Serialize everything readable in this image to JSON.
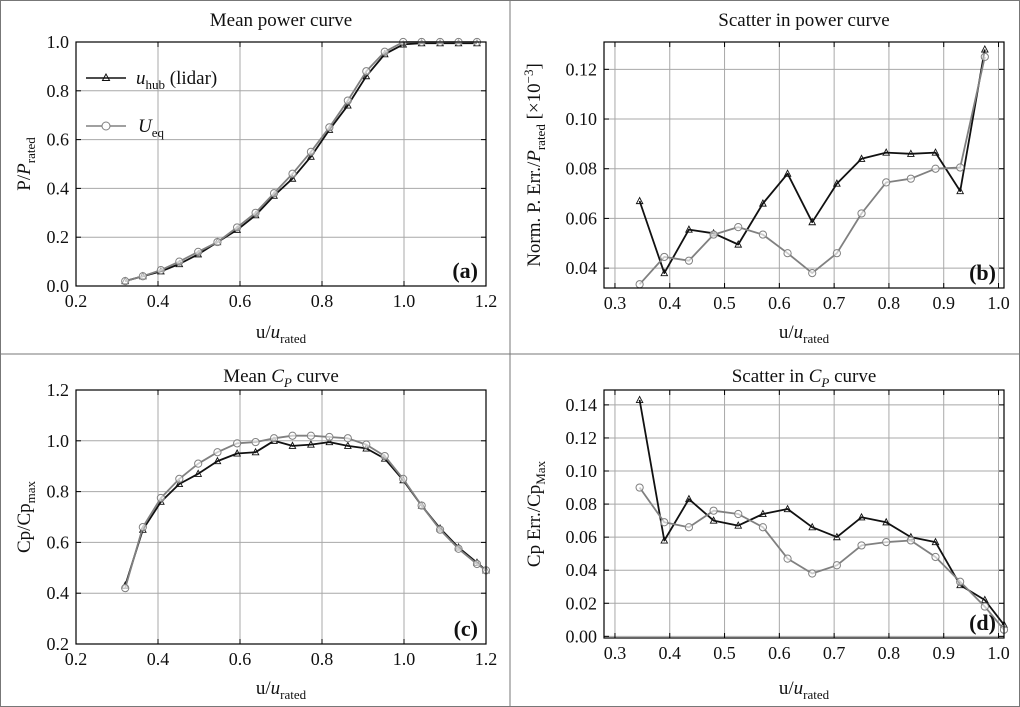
{
  "colors": {
    "hub": "#111111",
    "eq": "#808080",
    "grid": "#a8a8a8",
    "frame": "#000000",
    "panel_border": "#777777"
  },
  "legend": {
    "hub": {
      "sym": "u",
      "sub": "hub",
      "suffix": " (lidar)"
    },
    "eq": {
      "sym": "U",
      "sub": "eq",
      "suffix": ""
    }
  },
  "chart_data": [
    {
      "id": "a",
      "type": "line",
      "title": [
        {
          "t": "Mean power curve"
        }
      ],
      "xlabel": [
        {
          "t": "u/"
        },
        {
          "t": "u",
          "i": true
        },
        {
          "t": "rated",
          "sub": true
        }
      ],
      "ylabel": [
        {
          "t": "P/"
        },
        {
          "t": "P",
          "i": true
        },
        {
          "t": "rated",
          "sub": true
        }
      ],
      "panel_label": "(a)",
      "xlim": [
        0.2,
        1.2
      ],
      "ylim": [
        0.0,
        1.0
      ],
      "xticks": [
        0.2,
        0.4,
        0.6,
        0.8,
        1.0,
        1.2
      ],
      "xtick_labels": [
        "0.2",
        "0.4",
        "0.6",
        "0.8",
        "1.0",
        "1.2"
      ],
      "yticks": [
        0.0,
        0.2,
        0.4,
        0.6,
        0.8,
        1.0
      ],
      "ytick_labels": [
        "0.0",
        "0.2",
        "0.4",
        "0.6",
        "0.8",
        "1.0"
      ],
      "grid": true,
      "legend": "upper-left",
      "series": [
        {
          "key": "hub",
          "marker": "triangle",
          "x": [
            0.32,
            0.363,
            0.407,
            0.452,
            0.498,
            0.545,
            0.593,
            0.638,
            0.683,
            0.728,
            0.773,
            0.818,
            0.863,
            0.908,
            0.953,
            0.998,
            1.043,
            1.088,
            1.133,
            1.178
          ],
          "y": [
            0.02,
            0.04,
            0.06,
            0.09,
            0.13,
            0.18,
            0.23,
            0.29,
            0.37,
            0.44,
            0.53,
            0.64,
            0.74,
            0.86,
            0.95,
            0.99,
            0.995,
            0.995,
            0.995,
            0.995
          ]
        },
        {
          "key": "eq",
          "marker": "circle",
          "x": [
            0.32,
            0.363,
            0.407,
            0.452,
            0.498,
            0.545,
            0.593,
            0.638,
            0.683,
            0.728,
            0.773,
            0.818,
            0.863,
            0.908,
            0.953,
            0.998,
            1.043,
            1.088,
            1.133,
            1.178
          ],
          "y": [
            0.02,
            0.04,
            0.065,
            0.1,
            0.14,
            0.18,
            0.24,
            0.3,
            0.38,
            0.46,
            0.55,
            0.65,
            0.76,
            0.88,
            0.96,
            1.0,
            1.0,
            1.0,
            1.0,
            1.0
          ]
        }
      ]
    },
    {
      "id": "b",
      "type": "line",
      "title": [
        {
          "t": "Scatter in power curve"
        }
      ],
      "xlabel": [
        {
          "t": "u/"
        },
        {
          "t": "u",
          "i": true
        },
        {
          "t": "rated",
          "sub": true
        }
      ],
      "ylabel": [
        {
          "t": "Norm. P. Err./"
        },
        {
          "t": "P",
          "i": true
        },
        {
          "t": "rated",
          "sub": true
        },
        {
          "t": " [×10"
        },
        {
          "t": "−3",
          "sup": true
        },
        {
          "t": "]"
        }
      ],
      "panel_label": "(b)",
      "xlim": [
        0.28,
        1.01
      ],
      "ylim": [
        0.032,
        0.131
      ],
      "xticks": [
        0.3,
        0.4,
        0.5,
        0.6,
        0.7,
        0.8,
        0.9,
        1.0
      ],
      "xtick_labels": [
        "0.3",
        "0.4",
        "0.5",
        "0.6",
        "0.7",
        "0.8",
        "0.9",
        "1.0"
      ],
      "yticks": [
        0.04,
        0.06,
        0.08,
        0.1,
        0.12
      ],
      "ytick_labels": [
        "0.04",
        "0.06",
        "0.08",
        "0.10",
        "0.12"
      ],
      "grid": true,
      "legend": "none",
      "series": [
        {
          "key": "hub",
          "marker": "triangle",
          "x": [
            0.345,
            0.39,
            0.435,
            0.48,
            0.525,
            0.57,
            0.615,
            0.66,
            0.705,
            0.75,
            0.795,
            0.84,
            0.885,
            0.93,
            0.975
          ],
          "y": [
            0.067,
            0.038,
            0.0555,
            0.054,
            0.0495,
            0.066,
            0.078,
            0.0585,
            0.074,
            0.084,
            0.0865,
            0.086,
            0.0865,
            0.071,
            0.128
          ]
        },
        {
          "key": "eq",
          "marker": "circle",
          "x": [
            0.345,
            0.39,
            0.435,
            0.48,
            0.525,
            0.57,
            0.615,
            0.66,
            0.705,
            0.75,
            0.795,
            0.84,
            0.885,
            0.93,
            0.975
          ],
          "y": [
            0.0335,
            0.0445,
            0.043,
            0.0535,
            0.0565,
            0.0535,
            0.046,
            0.038,
            0.046,
            0.062,
            0.0745,
            0.076,
            0.08,
            0.0805,
            0.125
          ]
        }
      ]
    },
    {
      "id": "c",
      "type": "line",
      "title": [
        {
          "t": "Mean "
        },
        {
          "t": "C",
          "i": true
        },
        {
          "t": "P",
          "i": true,
          "sub": true
        },
        {
          "t": " curve"
        }
      ],
      "xlabel": [
        {
          "t": "u/"
        },
        {
          "t": "u",
          "i": true
        },
        {
          "t": "rated",
          "sub": true
        }
      ],
      "ylabel": [
        {
          "t": "Cp/Cp"
        },
        {
          "t": "max",
          "sub": true
        }
      ],
      "panel_label": "(c)",
      "xlim": [
        0.2,
        1.2
      ],
      "ylim": [
        0.2,
        1.2
      ],
      "xticks": [
        0.2,
        0.4,
        0.6,
        0.8,
        1.0,
        1.2
      ],
      "xtick_labels": [
        "0.2",
        "0.4",
        "0.6",
        "0.8",
        "1.0",
        "1.2"
      ],
      "yticks": [
        0.2,
        0.4,
        0.6,
        0.8,
        1.0,
        1.2
      ],
      "ytick_labels": [
        "0.2",
        "0.4",
        "0.6",
        "0.8",
        "1.0",
        "1.2"
      ],
      "grid": true,
      "legend": "none",
      "series": [
        {
          "key": "hub",
          "marker": "triangle",
          "x": [
            0.32,
            0.363,
            0.407,
            0.452,
            0.498,
            0.545,
            0.593,
            0.638,
            0.683,
            0.728,
            0.773,
            0.818,
            0.863,
            0.908,
            0.953,
            0.998,
            1.043,
            1.088,
            1.133,
            1.178,
            1.2
          ],
          "y": [
            0.43,
            0.65,
            0.76,
            0.83,
            0.87,
            0.92,
            0.95,
            0.955,
            1.0,
            0.98,
            0.985,
            0.995,
            0.98,
            0.97,
            0.93,
            0.845,
            0.745,
            0.655,
            0.58,
            0.52,
            0.49
          ]
        },
        {
          "key": "eq",
          "marker": "circle",
          "x": [
            0.32,
            0.363,
            0.407,
            0.452,
            0.498,
            0.545,
            0.593,
            0.638,
            0.683,
            0.728,
            0.773,
            0.818,
            0.863,
            0.908,
            0.953,
            0.998,
            1.043,
            1.088,
            1.133,
            1.178,
            1.2
          ],
          "y": [
            0.42,
            0.66,
            0.775,
            0.85,
            0.91,
            0.955,
            0.99,
            0.995,
            1.01,
            1.02,
            1.02,
            1.015,
            1.01,
            0.985,
            0.94,
            0.85,
            0.745,
            0.65,
            0.575,
            0.515,
            0.49
          ]
        }
      ]
    },
    {
      "id": "d",
      "type": "line",
      "title": [
        {
          "t": "Scatter in "
        },
        {
          "t": "C",
          "i": true
        },
        {
          "t": "P",
          "i": true,
          "sub": true
        },
        {
          "t": " curve"
        }
      ],
      "xlabel": [
        {
          "t": "u/"
        },
        {
          "t": "u",
          "i": true
        },
        {
          "t": "rated",
          "sub": true
        }
      ],
      "ylabel": [
        {
          "t": "Cp Err./Cp"
        },
        {
          "t": "Max",
          "sub": true
        }
      ],
      "panel_label": "(d)",
      "xlim": [
        0.28,
        1.01
      ],
      "ylim": [
        -0.001,
        0.149
      ],
      "xticks": [
        0.3,
        0.4,
        0.5,
        0.6,
        0.7,
        0.8,
        0.9,
        1.0
      ],
      "xtick_labels": [
        "0.3",
        "0.4",
        "0.5",
        "0.6",
        "0.7",
        "0.8",
        "0.9",
        "1.0"
      ],
      "yticks": [
        0.0,
        0.02,
        0.04,
        0.06,
        0.08,
        0.1,
        0.12,
        0.14
      ],
      "ytick_labels": [
        "0.00",
        "0.02",
        "0.04",
        "0.06",
        "0.08",
        "0.10",
        "0.12",
        "0.14"
      ],
      "grid": true,
      "legend": "none",
      "series": [
        {
          "key": "hub",
          "marker": "triangle",
          "x": [
            0.345,
            0.39,
            0.435,
            0.48,
            0.525,
            0.57,
            0.615,
            0.66,
            0.705,
            0.75,
            0.795,
            0.84,
            0.885,
            0.93,
            0.975,
            1.01
          ],
          "y": [
            0.143,
            0.058,
            0.083,
            0.07,
            0.067,
            0.074,
            0.077,
            0.066,
            0.06,
            0.072,
            0.069,
            0.06,
            0.057,
            0.031,
            0.022,
            0.007
          ]
        },
        {
          "key": "eq",
          "marker": "circle",
          "x": [
            0.345,
            0.39,
            0.435,
            0.48,
            0.525,
            0.57,
            0.615,
            0.66,
            0.705,
            0.75,
            0.795,
            0.84,
            0.885,
            0.93,
            0.975,
            1.01
          ],
          "y": [
            0.09,
            0.069,
            0.066,
            0.076,
            0.074,
            0.066,
            0.047,
            0.038,
            0.043,
            0.055,
            0.057,
            0.058,
            0.048,
            0.033,
            0.018,
            0.004
          ]
        }
      ]
    }
  ]
}
